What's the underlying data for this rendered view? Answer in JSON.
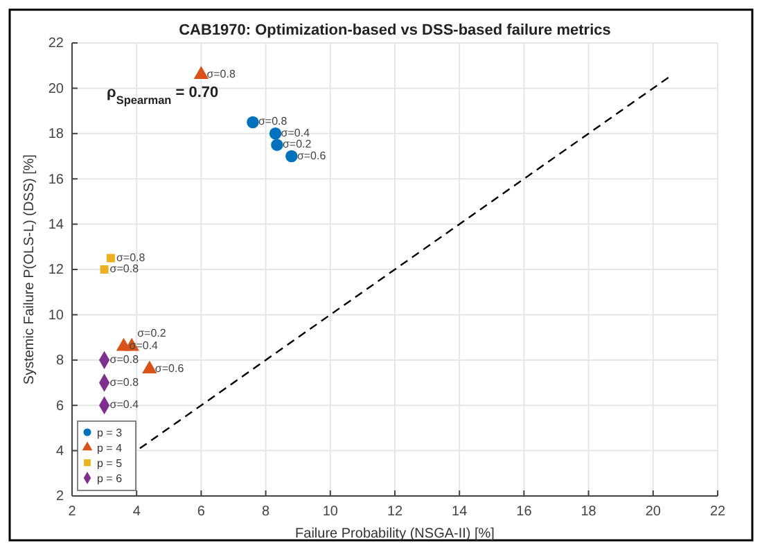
{
  "chart_data": {
    "type": "scatter",
    "title": "CAB1970: Optimization-based vs DSS-based failure metrics",
    "xlabel": "Failure Probability (NSGA-II) [%]",
    "ylabel": "Systemic Failure P(OLS-L) (DSS) [%]",
    "xlim": [
      2,
      22
    ],
    "xticks": [
      2,
      4,
      6,
      8,
      10,
      12,
      14,
      16,
      18,
      20,
      22
    ],
    "ylim": [
      2,
      22
    ],
    "yticks": [
      2,
      4,
      6,
      8,
      10,
      12,
      14,
      16,
      18,
      20,
      22
    ],
    "grid": true,
    "legend": "bottom left",
    "annotations": [
      "ρ$_{Spearman}$ = 0.70",
      {
        "text": "σ=0.8",
        "x": 7.6,
        "y": 18.5
      },
      {
        "text": "σ=0.4",
        "x": 8.3,
        "y": 18.0
      },
      {
        "text": "σ=0.2",
        "x": 8.35,
        "y": 17.5
      },
      {
        "text": "σ=0.6",
        "x": 8.8,
        "y": 17.0
      },
      {
        "text": "σ=0.8",
        "x": 6.0,
        "y": 20.6
      },
      {
        "text": "σ=0.4",
        "x": 3.6,
        "y": 8.6
      },
      {
        "text": "σ=0.2",
        "x": 3.85,
        "y": 8.6
      },
      {
        "text": "σ=0.6",
        "x": 4.4,
        "y": 7.6
      },
      {
        "text": "σ=0.8",
        "x": 3.2,
        "y": 12.5
      },
      {
        "text": "σ=0.8",
        "x": 3.0,
        "y": 12.0
      },
      {
        "text": "σ=0.8",
        "x": 3.0,
        "y": 8.0
      },
      {
        "text": "σ=0.8",
        "x": 3.0,
        "y": 7.0
      },
      {
        "text": "σ=0.4",
        "x": 3.0,
        "y": 6.0
      }
    ],
    "series": [
      {
        "name": "p = 3",
        "color": "#0072bd",
        "marker": "circle",
        "x": [
          7.6,
          8.3,
          8.35,
          8.8
        ],
        "values": [
          18.5,
          18.0,
          17.5,
          17.0
        ]
      },
      {
        "name": "p = 4",
        "color": "#d95319",
        "marker": "triangle",
        "x": [
          6.0,
          3.6,
          3.85,
          4.4
        ],
        "values": [
          20.6,
          8.6,
          8.6,
          7.6
        ]
      },
      {
        "name": "p = 5",
        "color": "#edb120",
        "marker": "square",
        "x": [
          3.2,
          3.0
        ],
        "values": [
          12.5,
          12.0
        ]
      },
      {
        "name": "p = 6",
        "color": "#7e2f8e",
        "marker": "diamond",
        "x": [
          3.0,
          3.0,
          3.0
        ],
        "values": [
          8.0,
          7.0,
          6.0
        ]
      },
      {
        "type": "line",
        "color": "#000000",
        "line_style": "dashed",
        "x": [
          4.1,
          20.5
        ],
        "values": [
          4.1,
          20.5
        ]
      }
    ]
  }
}
